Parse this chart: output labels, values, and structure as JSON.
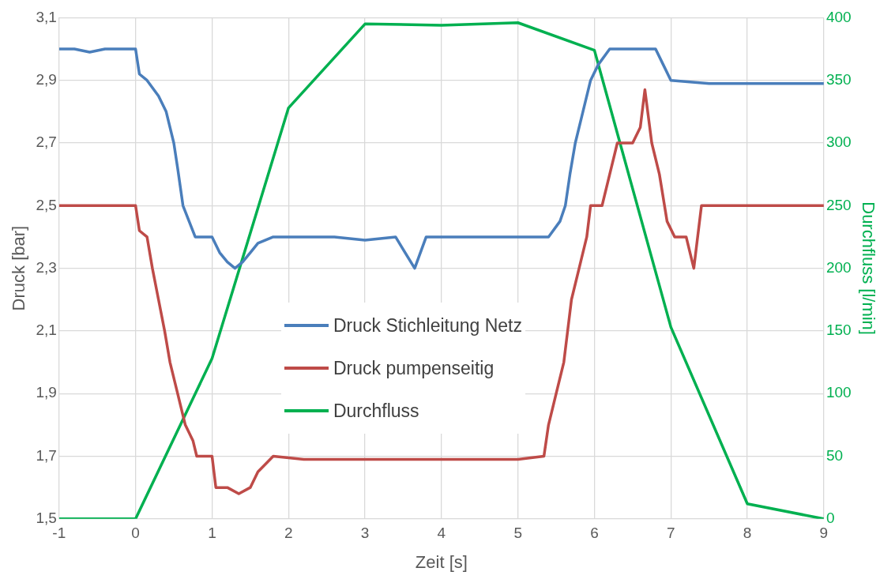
{
  "chart_data": {
    "type": "line",
    "xlabel": "Zeit [s]",
    "ylabel": "Druck [bar]",
    "y2label": "Durchfluss [l/min]",
    "xlim": [
      -1,
      9
    ],
    "xticks": [
      -1,
      0,
      1,
      2,
      3,
      4,
      5,
      6,
      7,
      8,
      9
    ],
    "ylim": [
      1.5,
      3.1
    ],
    "yticks": [
      {
        "value": 1.5,
        "label": "1,5"
      },
      {
        "value": 1.7,
        "label": "1,7"
      },
      {
        "value": 1.9,
        "label": "1,9"
      },
      {
        "value": 2.1,
        "label": "2,1"
      },
      {
        "value": 2.3,
        "label": "2,3"
      },
      {
        "value": 2.5,
        "label": "2,5"
      },
      {
        "value": 2.7,
        "label": "2,7"
      },
      {
        "value": 2.9,
        "label": "2,9"
      },
      {
        "value": 3.1,
        "label": "3,1"
      }
    ],
    "y2lim": [
      0,
      400
    ],
    "y2ticks": [
      0,
      50,
      100,
      150,
      200,
      250,
      300,
      350,
      400
    ],
    "grid": true,
    "legend": "center",
    "marker": "none",
    "line_style": "solid",
    "series": [
      {
        "name": "Druck Stichleitung Netz",
        "color": "#4a7ebb",
        "x": [
          -1,
          -0.8,
          -0.6,
          -0.4,
          -0.2,
          0,
          0.05,
          0.15,
          0.3,
          0.4,
          0.5,
          0.55,
          0.62,
          0.7,
          0.78,
          0.85,
          1.0,
          1.1,
          1.2,
          1.3,
          1.4,
          1.5,
          1.6,
          1.8,
          2.2,
          2.6,
          3.0,
          3.4,
          3.65,
          3.8,
          4.2,
          4.6,
          5.0,
          5.4,
          5.55,
          5.62,
          5.68,
          5.75,
          5.85,
          5.95,
          6.05,
          6.2,
          6.5,
          6.8,
          6.9,
          7.0,
          7.5,
          8.0,
          8.5,
          9.0
        ],
        "values": [
          3.0,
          3.0,
          2.99,
          3.0,
          3.0,
          3.0,
          2.92,
          2.9,
          2.85,
          2.8,
          2.7,
          2.62,
          2.5,
          2.45,
          2.4,
          2.4,
          2.4,
          2.35,
          2.32,
          2.3,
          2.32,
          2.35,
          2.38,
          2.4,
          2.4,
          2.4,
          2.39,
          2.4,
          2.3,
          2.4,
          2.4,
          2.4,
          2.4,
          2.4,
          2.45,
          2.5,
          2.6,
          2.7,
          2.8,
          2.9,
          2.95,
          3.0,
          3.0,
          3.0,
          2.95,
          2.9,
          2.89,
          2.89,
          2.89,
          2.89
        ]
      },
      {
        "name": "Druck pumpenseitig",
        "color": "#be4b48",
        "x": [
          -1,
          -0.6,
          -0.2,
          0,
          0.05,
          0.15,
          0.22,
          0.3,
          0.38,
          0.45,
          0.55,
          0.65,
          0.75,
          0.8,
          1.0,
          1.05,
          1.2,
          1.35,
          1.5,
          1.6,
          1.8,
          2.2,
          2.6,
          3.0,
          3.4,
          3.8,
          4.2,
          4.6,
          5.0,
          5.34,
          5.4,
          5.5,
          5.6,
          5.65,
          5.7,
          5.8,
          5.9,
          5.95,
          6.1,
          6.2,
          6.3,
          6.5,
          6.6,
          6.66,
          6.75,
          6.85,
          6.95,
          7.05,
          7.2,
          7.3,
          7.4,
          7.6,
          8.0,
          8.5,
          9.0
        ],
        "values": [
          2.5,
          2.5,
          2.5,
          2.5,
          2.42,
          2.4,
          2.3,
          2.2,
          2.1,
          2.0,
          1.9,
          1.8,
          1.75,
          1.7,
          1.7,
          1.6,
          1.6,
          1.58,
          1.6,
          1.65,
          1.7,
          1.69,
          1.69,
          1.69,
          1.69,
          1.69,
          1.69,
          1.69,
          1.69,
          1.7,
          1.8,
          1.9,
          2.0,
          2.1,
          2.2,
          2.3,
          2.4,
          2.5,
          2.5,
          2.6,
          2.7,
          2.7,
          2.75,
          2.87,
          2.7,
          2.6,
          2.45,
          2.4,
          2.4,
          2.3,
          2.5,
          2.5,
          2.5,
          2.5,
          2.5
        ]
      },
      {
        "name": "Durchfluss",
        "color": "#00b050",
        "axis": "y2",
        "x": [
          -1,
          0,
          1,
          2,
          3,
          4,
          5,
          6,
          7,
          8,
          9
        ],
        "values": [
          0,
          0,
          128,
          328,
          395,
          394,
          396,
          374,
          153,
          12,
          0
        ]
      }
    ]
  }
}
